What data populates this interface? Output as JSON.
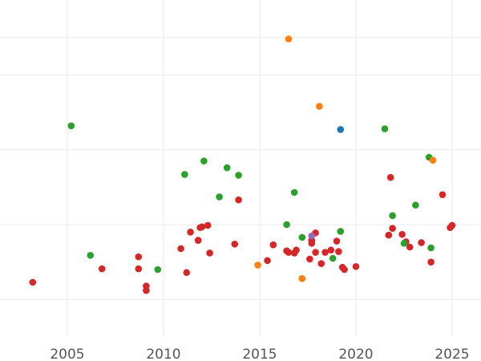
{
  "chart_data": {
    "type": "scatter",
    "title": "",
    "xlabel": "",
    "ylabel": "",
    "xlim": [
      2001.5,
      2026.5
    ],
    "ylim": [
      0,
      4.5
    ],
    "x_ticks": [
      2005,
      2010,
      2015,
      2020,
      2025
    ],
    "y_gridlines": [
      0.5,
      1.5,
      2.5,
      3.5,
      4.0
    ],
    "grid": true,
    "legend": "none",
    "series": [
      {
        "color": "#d62728",
        "points": [
          [
            2003.2,
            0.73
          ],
          [
            2006.8,
            0.91
          ],
          [
            2008.7,
            0.91
          ],
          [
            2008.7,
            1.07
          ],
          [
            2009.1,
            0.68
          ],
          [
            2009.1,
            0.62
          ],
          [
            2010.9,
            1.18
          ],
          [
            2011.2,
            0.86
          ],
          [
            2011.4,
            1.4
          ],
          [
            2011.8,
            1.29
          ],
          [
            2011.8,
            1.29
          ],
          [
            2011.9,
            1.46
          ],
          [
            2012.0,
            1.47
          ],
          [
            2012.3,
            1.49
          ],
          [
            2012.4,
            1.12
          ],
          [
            2013.7,
            1.24
          ],
          [
            2013.9,
            1.83
          ],
          [
            2015.4,
            1.02
          ],
          [
            2015.7,
            1.23
          ],
          [
            2016.4,
            1.15
          ],
          [
            2016.5,
            1.13
          ],
          [
            2016.8,
            1.12
          ],
          [
            2016.9,
            1.16
          ],
          [
            2017.6,
            1.04
          ],
          [
            2017.7,
            1.25
          ],
          [
            2017.7,
            1.29
          ],
          [
            2017.9,
            1.39
          ],
          [
            2017.9,
            1.13
          ],
          [
            2018.2,
            0.98
          ],
          [
            2018.4,
            1.13
          ],
          [
            2018.7,
            1.16
          ],
          [
            2019.0,
            1.28
          ],
          [
            2019.1,
            1.14
          ],
          [
            2019.3,
            0.93
          ],
          [
            2019.4,
            0.9
          ],
          [
            2020.0,
            0.94
          ],
          [
            2021.7,
            1.36
          ],
          [
            2021.8,
            2.13
          ],
          [
            2021.9,
            1.45
          ],
          [
            2022.4,
            1.37
          ],
          [
            2022.6,
            1.27
          ],
          [
            2022.8,
            1.2
          ],
          [
            2023.4,
            1.26
          ],
          [
            2023.9,
            1.0
          ],
          [
            2024.5,
            1.9
          ],
          [
            2024.9,
            1.46
          ],
          [
            2025.0,
            1.49
          ]
        ]
      },
      {
        "color": "#2ca02c",
        "points": [
          [
            2005.2,
            2.82
          ],
          [
            2006.2,
            1.09
          ],
          [
            2009.7,
            0.9
          ],
          [
            2011.1,
            2.17
          ],
          [
            2012.1,
            2.35
          ],
          [
            2012.9,
            1.87
          ],
          [
            2013.3,
            2.26
          ],
          [
            2013.9,
            2.16
          ],
          [
            2016.4,
            1.5
          ],
          [
            2016.8,
            1.93
          ],
          [
            2017.2,
            1.33
          ],
          [
            2019.2,
            1.41
          ],
          [
            2021.5,
            2.78
          ],
          [
            2021.9,
            1.62
          ],
          [
            2022.5,
            1.25
          ],
          [
            2023.1,
            1.76
          ],
          [
            2023.8,
            2.4
          ],
          [
            2023.9,
            1.19
          ],
          [
            2018.8,
            1.05
          ]
        ]
      },
      {
        "color": "#ff7f0e",
        "points": [
          [
            2016.5,
            3.98
          ],
          [
            2018.1,
            3.08
          ],
          [
            2014.9,
            0.96
          ],
          [
            2017.2,
            0.78
          ],
          [
            2024.0,
            2.36
          ]
        ]
      },
      {
        "color": "#1f77b4",
        "points": [
          [
            2019.2,
            2.77
          ]
        ]
      },
      {
        "color": "#9467bd",
        "points": [
          [
            2017.7,
            1.35
          ]
        ]
      }
    ]
  }
}
